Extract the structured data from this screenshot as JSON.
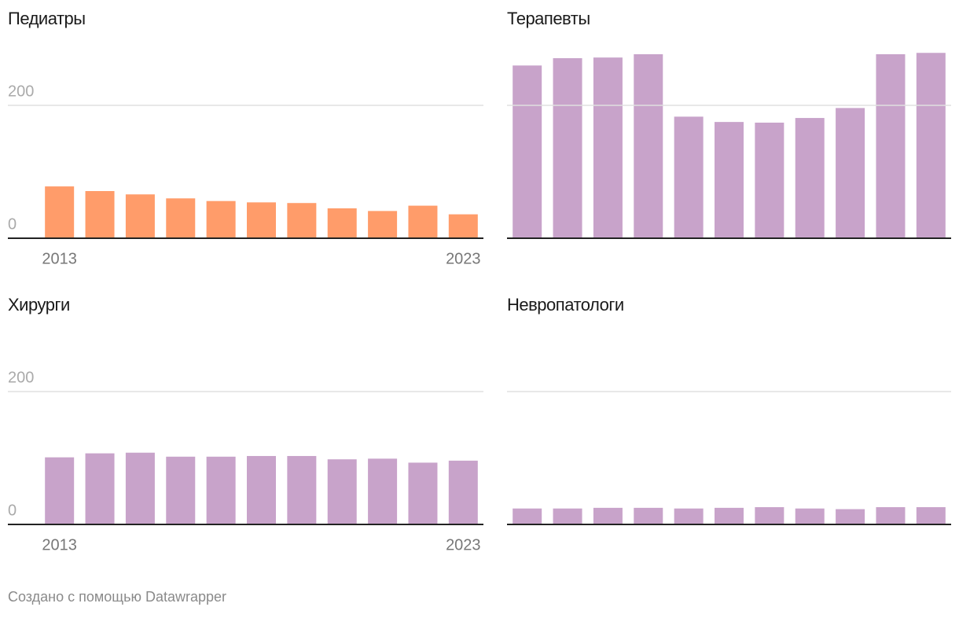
{
  "chart_data": [
    {
      "type": "bar",
      "title": "Педиатры",
      "color": "#ff9c6a",
      "categories": [
        "2013",
        null,
        null,
        null,
        null,
        null,
        null,
        null,
        null,
        null,
        "2023"
      ],
      "values": [
        78,
        71,
        66,
        60,
        56,
        54,
        53,
        45,
        41,
        49,
        36
      ],
      "ylim": [
        0,
        290
      ],
      "yticks": [
        0,
        200
      ],
      "grid": true,
      "show_ytick_labels": true
    },
    {
      "type": "bar",
      "title": "Терапевты",
      "color": "#c8a3ca",
      "categories": [
        null,
        null,
        null,
        null,
        null,
        null,
        null,
        null,
        null,
        null,
        null
      ],
      "values": [
        260,
        271,
        272,
        277,
        183,
        175,
        174,
        181,
        196,
        277,
        279
      ],
      "ylim": [
        0,
        290
      ],
      "yticks": [
        0,
        200
      ],
      "grid": true,
      "show_ytick_labels": false
    },
    {
      "type": "bar",
      "title": "Хирурги",
      "color": "#c8a3ca",
      "categories": [
        "2013",
        null,
        null,
        null,
        null,
        null,
        null,
        null,
        null,
        null,
        "2023"
      ],
      "values": [
        101,
        107,
        108,
        102,
        102,
        103,
        103,
        98,
        99,
        93,
        96
      ],
      "ylim": [
        0,
        290
      ],
      "yticks": [
        0,
        200
      ],
      "grid": true,
      "show_ytick_labels": true
    },
    {
      "type": "bar",
      "title": "Невропатологи",
      "color": "#c8a3ca",
      "categories": [
        null,
        null,
        null,
        null,
        null,
        null,
        null,
        null,
        null,
        null,
        null
      ],
      "values": [
        24,
        24,
        25,
        25,
        24,
        25,
        26,
        24,
        23,
        26,
        26
      ],
      "ylim": [
        0,
        290
      ],
      "yticks": [
        0,
        200
      ],
      "grid": true,
      "show_ytick_labels": false
    }
  ],
  "footer": "Создано с помощью Datawrapper"
}
